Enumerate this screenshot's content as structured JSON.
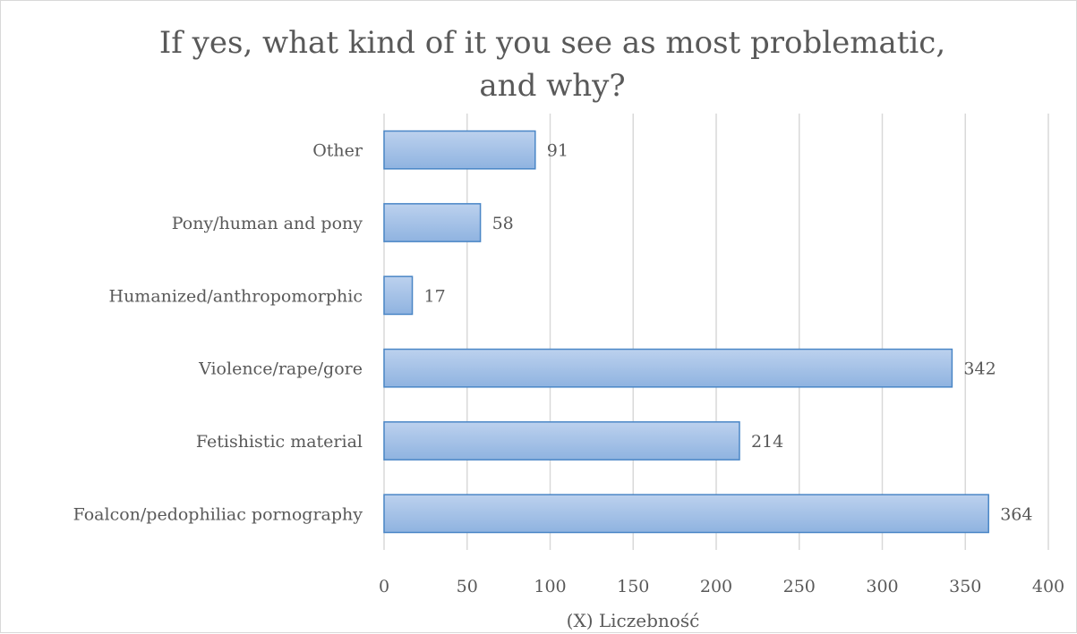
{
  "chart_data": {
    "type": "bar",
    "orientation": "horizontal",
    "title_lines": [
      "If yes, what kind of it you see as most problematic,",
      "and why?"
    ],
    "categories": [
      "Other",
      "Pony/human and pony",
      "Humanized/anthropomorphic",
      "Violence/rape/gore",
      "Fetishistic material",
      "Foalcon/pedophiliac pornography"
    ],
    "values": [
      91,
      58,
      17,
      342,
      214,
      364
    ],
    "xlabel": "(X) Liczebność",
    "ylabel": "",
    "xlim": [
      0,
      400
    ],
    "xticks": [
      0,
      50,
      100,
      150,
      200,
      250,
      300,
      350,
      400
    ],
    "grid": "vertical",
    "legend": "none",
    "data_labels": true,
    "colors": {
      "bar_top": "#bcd1ee",
      "bar_bottom": "#8fb3e0",
      "bar_border": "#4a86c6",
      "text": "#595959",
      "grid": "#d9d9d9"
    }
  }
}
